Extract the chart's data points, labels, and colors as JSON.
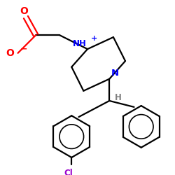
{
  "background": "#ffffff",
  "atom_colors": {
    "O": "#ff0000",
    "N_charged": "#0000ff",
    "N": "#0000ff",
    "Cl": "#9900cc",
    "H": "#808080",
    "C": "#000000"
  },
  "bond_color": "#000000",
  "bond_width": 1.6,
  "fig_size": [
    2.5,
    2.5
  ],
  "dpi": 100
}
